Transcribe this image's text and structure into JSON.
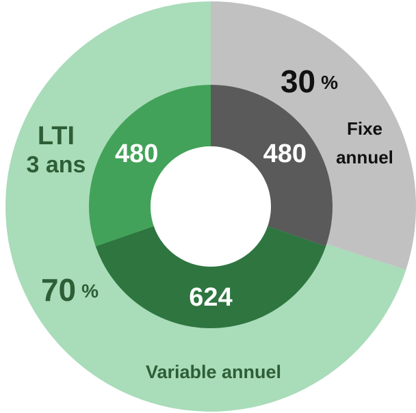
{
  "chart_data": {
    "type": "sunburst",
    "outer": {
      "categories": [
        "Fixe annuel",
        "Variable annuel"
      ],
      "values": [
        30,
        70
      ],
      "value_labels": [
        "30 %",
        "70 %"
      ],
      "colors": [
        "#c1c1c1",
        "#a9dcb9"
      ]
    },
    "inner": {
      "values": [
        480,
        624,
        480
      ],
      "colors": [
        "#5a5a5a",
        "#2e7540",
        "#42a259"
      ]
    },
    "annotations": [
      "LTI 3 ans"
    ]
  }
}
